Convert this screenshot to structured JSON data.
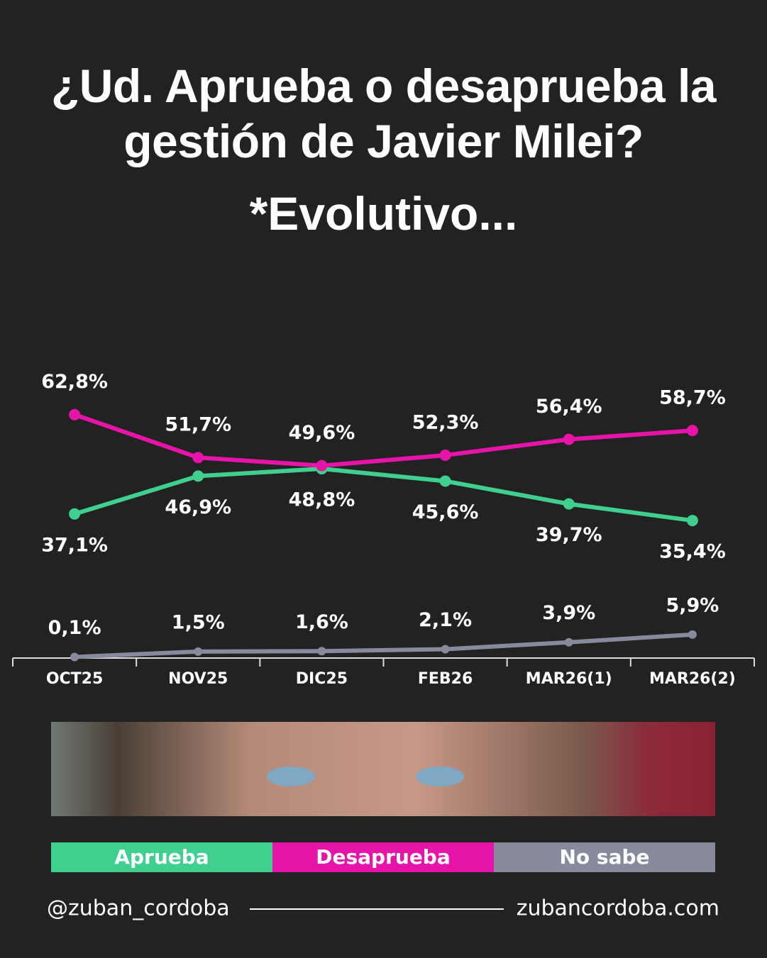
{
  "chart_data": {
    "type": "line",
    "title": "¿Ud. Aprueba o desaprueba la gestión de Javier Milei?",
    "subtitle": "*Evolutivo...",
    "categories": [
      "OCT25",
      "NOV25",
      "DIC25",
      "FEB26",
      "MAR26(1)",
      "MAR26(2)"
    ],
    "ylim": [
      0,
      100
    ],
    "series": [
      {
        "name": "Aprueba",
        "color": "#3fcf8e",
        "values": [
          37.1,
          46.9,
          48.8,
          45.6,
          39.7,
          35.4
        ],
        "value_labels": [
          "37,1%",
          "46,9%",
          "48,8%",
          "45,6%",
          "39,7%",
          "35,4%"
        ]
      },
      {
        "name": "Desaprueba",
        "color": "#e614a8",
        "values": [
          62.8,
          51.7,
          49.6,
          52.3,
          56.4,
          58.7
        ],
        "value_labels": [
          "62,8%",
          "51,7%",
          "49,6%",
          "52,3%",
          "56,4%",
          "58,7%"
        ]
      },
      {
        "name": "No sabe",
        "color": "#868a9c",
        "values": [
          0.1,
          1.5,
          1.6,
          2.1,
          3.9,
          5.9
        ],
        "value_labels": [
          "0,1%",
          "1,5%",
          "1,6%",
          "2,1%",
          "3,9%",
          "5,9%"
        ]
      }
    ]
  },
  "footer": {
    "left": "@zuban_cordoba",
    "right": "zubancordoba.com"
  }
}
